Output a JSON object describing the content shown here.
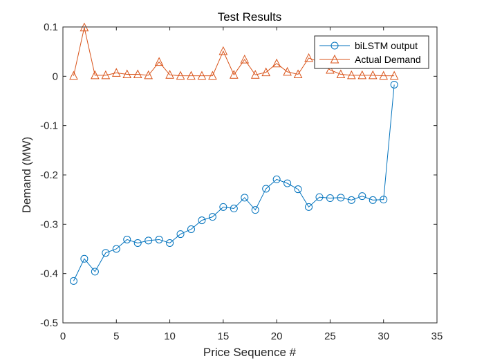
{
  "chart_data": {
    "type": "line",
    "title": "Test Results",
    "xlabel": "Price Sequence #",
    "ylabel": "Demand (MW)",
    "xlim": [
      0,
      35
    ],
    "ylim": [
      -0.5,
      0.1
    ],
    "xticks": [
      0,
      5,
      10,
      15,
      20,
      25,
      30,
      35
    ],
    "yticks": [
      -0.5,
      -0.4,
      -0.3,
      -0.2,
      -0.1,
      0,
      0.1
    ],
    "xtick_labels": [
      "0",
      "5",
      "10",
      "15",
      "20",
      "25",
      "30",
      "35"
    ],
    "ytick_labels": [
      "-0.5",
      "-0.4",
      "-0.3",
      "-0.2",
      "-0.1",
      "0",
      "0.1"
    ],
    "grid": false,
    "legend_position": "top-right",
    "x": [
      1,
      2,
      3,
      4,
      5,
      6,
      7,
      8,
      9,
      10,
      11,
      12,
      13,
      14,
      15,
      16,
      17,
      18,
      19,
      20,
      21,
      22,
      23,
      24,
      25,
      26,
      27,
      28,
      29,
      30,
      31
    ],
    "series": [
      {
        "name": "biLSTM output",
        "marker": "circle",
        "color": "#0072BD",
        "values": [
          -0.415,
          -0.37,
          -0.396,
          -0.358,
          -0.35,
          -0.331,
          -0.338,
          -0.333,
          -0.331,
          -0.338,
          -0.32,
          -0.31,
          -0.292,
          -0.285,
          -0.265,
          -0.268,
          -0.246,
          -0.271,
          -0.228,
          -0.209,
          -0.217,
          -0.229,
          -0.265,
          -0.245,
          -0.247,
          -0.246,
          -0.251,
          -0.243,
          -0.251,
          -0.25,
          -0.017
        ]
      },
      {
        "name": "Actual Demand",
        "marker": "triangle",
        "color": "#D95319",
        "values": [
          0.001,
          0.099,
          0.002,
          0.002,
          0.007,
          0.004,
          0.004,
          0.002,
          0.029,
          0.003,
          0.001,
          0.001,
          0.001,
          0.001,
          0.051,
          0.003,
          0.034,
          0.003,
          0.008,
          0.026,
          0.009,
          0.004,
          0.037,
          0.029,
          0.013,
          0.004,
          0.002,
          0.002,
          0.002,
          0.001,
          0.001
        ]
      }
    ]
  }
}
